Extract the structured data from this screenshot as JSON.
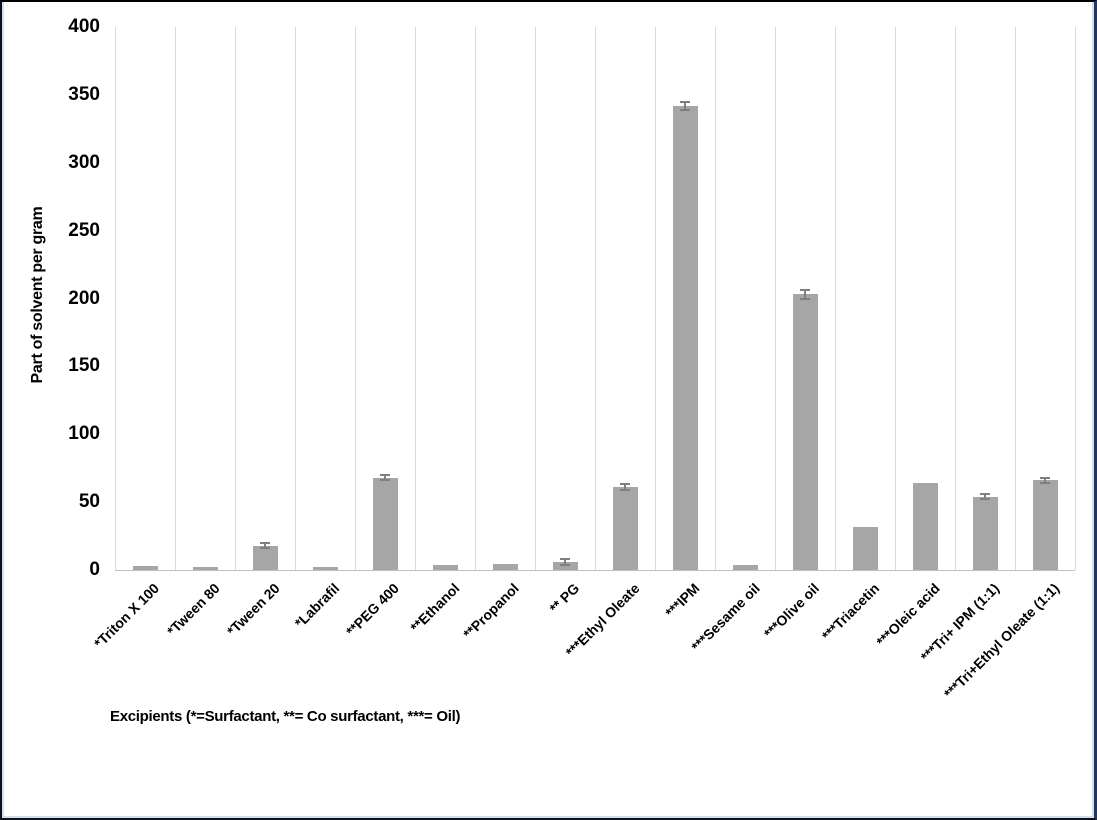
{
  "chart_data": {
    "type": "bar",
    "title": "",
    "ylabel": "Part of solvent per gram",
    "xlabel": "Excipients (*=Surfactant, **= Co surfactant, ***= Oil)",
    "ylim": [
      0,
      400
    ],
    "yticks": [
      0,
      50,
      100,
      150,
      200,
      250,
      300,
      350,
      400
    ],
    "grid": "vertical category separators only",
    "legend": "none",
    "bar_color": "#a6a6a6",
    "error_bar_color": "#7f7f7f",
    "gridline_color": "#d9d9d9",
    "axis_line_color": "#c0c0c0",
    "categories": [
      "*Triton X 100",
      "*Tween 80",
      "*Tween 20",
      "*Labrafil",
      "**PEG 400",
      "**Ethanol",
      "**Propanol",
      "** PG",
      "***Ethyl Oleate",
      "***IPM",
      "***Sesame oil",
      "***Olive oil",
      "***Triacetin",
      "***Oleic acid",
      "***Tri+ IPM (1:1)",
      "***Tri+Ethyl Oleate (1:1)"
    ],
    "values": [
      3,
      2,
      18,
      2.5,
      68,
      4,
      4.5,
      6,
      61,
      342,
      4,
      203,
      32,
      64,
      54,
      66
    ],
    "errors": [
      0,
      0,
      2,
      0,
      2,
      0,
      0,
      2,
      2,
      3,
      0,
      3,
      0,
      0,
      2,
      2
    ]
  }
}
